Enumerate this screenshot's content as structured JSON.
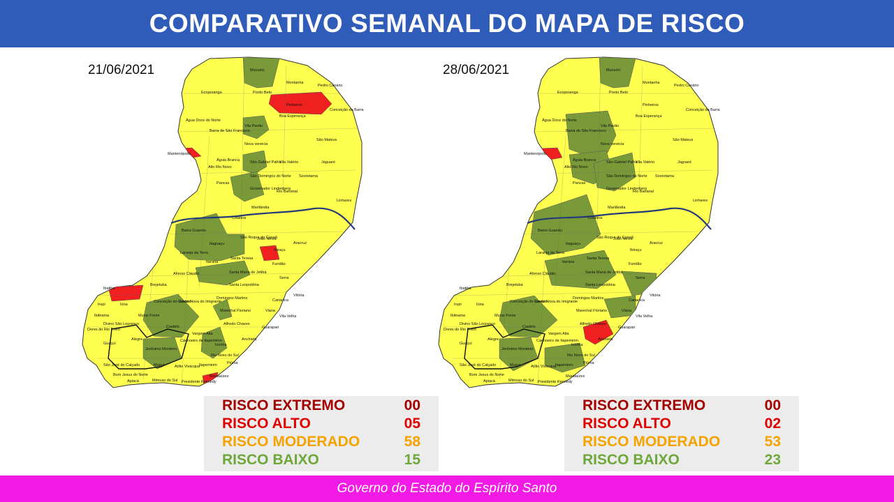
{
  "title": "COMPARATIVO SEMANAL DO MAPA DE RISCO",
  "footer": "Governo do Estado do Espírito Santo",
  "colors": {
    "header_bg": "#2e5cb8",
    "footer_bg": "#f21be6",
    "risco_extremo": "#a30000",
    "risco_alto": "#e00000",
    "risco_moderado": "#f5a300",
    "risco_baixo": "#6fa83a",
    "map_yellow": "#ffff50",
    "map_green": "#7a9a3a",
    "map_red": "#f02020"
  },
  "left": {
    "date": "21/06/2021",
    "legend": [
      {
        "label": "RISCO EXTREMO",
        "value": "00"
      },
      {
        "label": "RISCO ALTO",
        "value": "05"
      },
      {
        "label": "RISCO MODERADO",
        "value": "58"
      },
      {
        "label": "RISCO BAIXO",
        "value": "15"
      }
    ]
  },
  "right": {
    "date": "28/06/2021",
    "legend": [
      {
        "label": "RISCO EXTREMO",
        "value": "00"
      },
      {
        "label": "RISCO ALTO",
        "value": "02"
      },
      {
        "label": "RISCO MODERADO",
        "value": "53"
      },
      {
        "label": "RISCO BAIXO",
        "value": "23"
      }
    ]
  },
  "municipalities": [
    "Mucurici",
    "Montanha",
    "Pedro Canário",
    "Ecoporanga",
    "Ponto Belo",
    "Pinheiros",
    "Conceição da Barra",
    "Água Doce do Norte",
    "Vila Pavão",
    "Boa Esperança",
    "Barra de São Francisco",
    "Nova venécia",
    "São Mateus",
    "Mantenópolis",
    "Águia Branca",
    "São Gabriel Palha",
    "Vila Valério",
    "Jaguaré",
    "Alto Rio Novo",
    "Pancas",
    "São Domingos do Norte",
    "Sooretama",
    "Governador Lindenberg",
    "Rio Bananal",
    "Linhares",
    "Marilândia",
    "Colatina",
    "Baixo Guandu",
    "Itaguaçu",
    "São Roque do Canaã",
    "João Neiva",
    "Aracruz",
    "Laranja da Terra",
    "Ibiraçu",
    "Itarana",
    "Santa Teresa",
    "Fundão",
    "Afonso Cláudio",
    "Brejetuba",
    "Santa Maria de Jetibá",
    "Santa Leopoldina",
    "Serra",
    "Vitória",
    "Ibatiba",
    "Irupi",
    "Iúna",
    "Conceição do Castelo",
    "Venda Nova do Imigrante",
    "Domingos Martins",
    "Cariacica",
    "Ibitirama",
    "Muniz Freire",
    "Marechal Floriano",
    "Viana",
    "Vila Velha",
    "Divino São Lourenço",
    "Dores do Rio Preto",
    "Guaçuí",
    "Alegre",
    "Castelo",
    "Vargem Alta",
    "Alfredo Chaves",
    "Guarapari",
    "Cachoeiro de Itapemirim",
    "Jerônimo Monteiro",
    "Iconha",
    "Anchieta",
    "Muqui",
    "Rio Novo do Sul",
    "Piúma",
    "Atílio Vivácqua",
    "Itapemirim",
    "São José do Calçado",
    "Bom Jesus do Norte",
    "Apiacá",
    "Mimoso do Sul",
    "Presidente Kennedy",
    "Marataízes"
  ]
}
